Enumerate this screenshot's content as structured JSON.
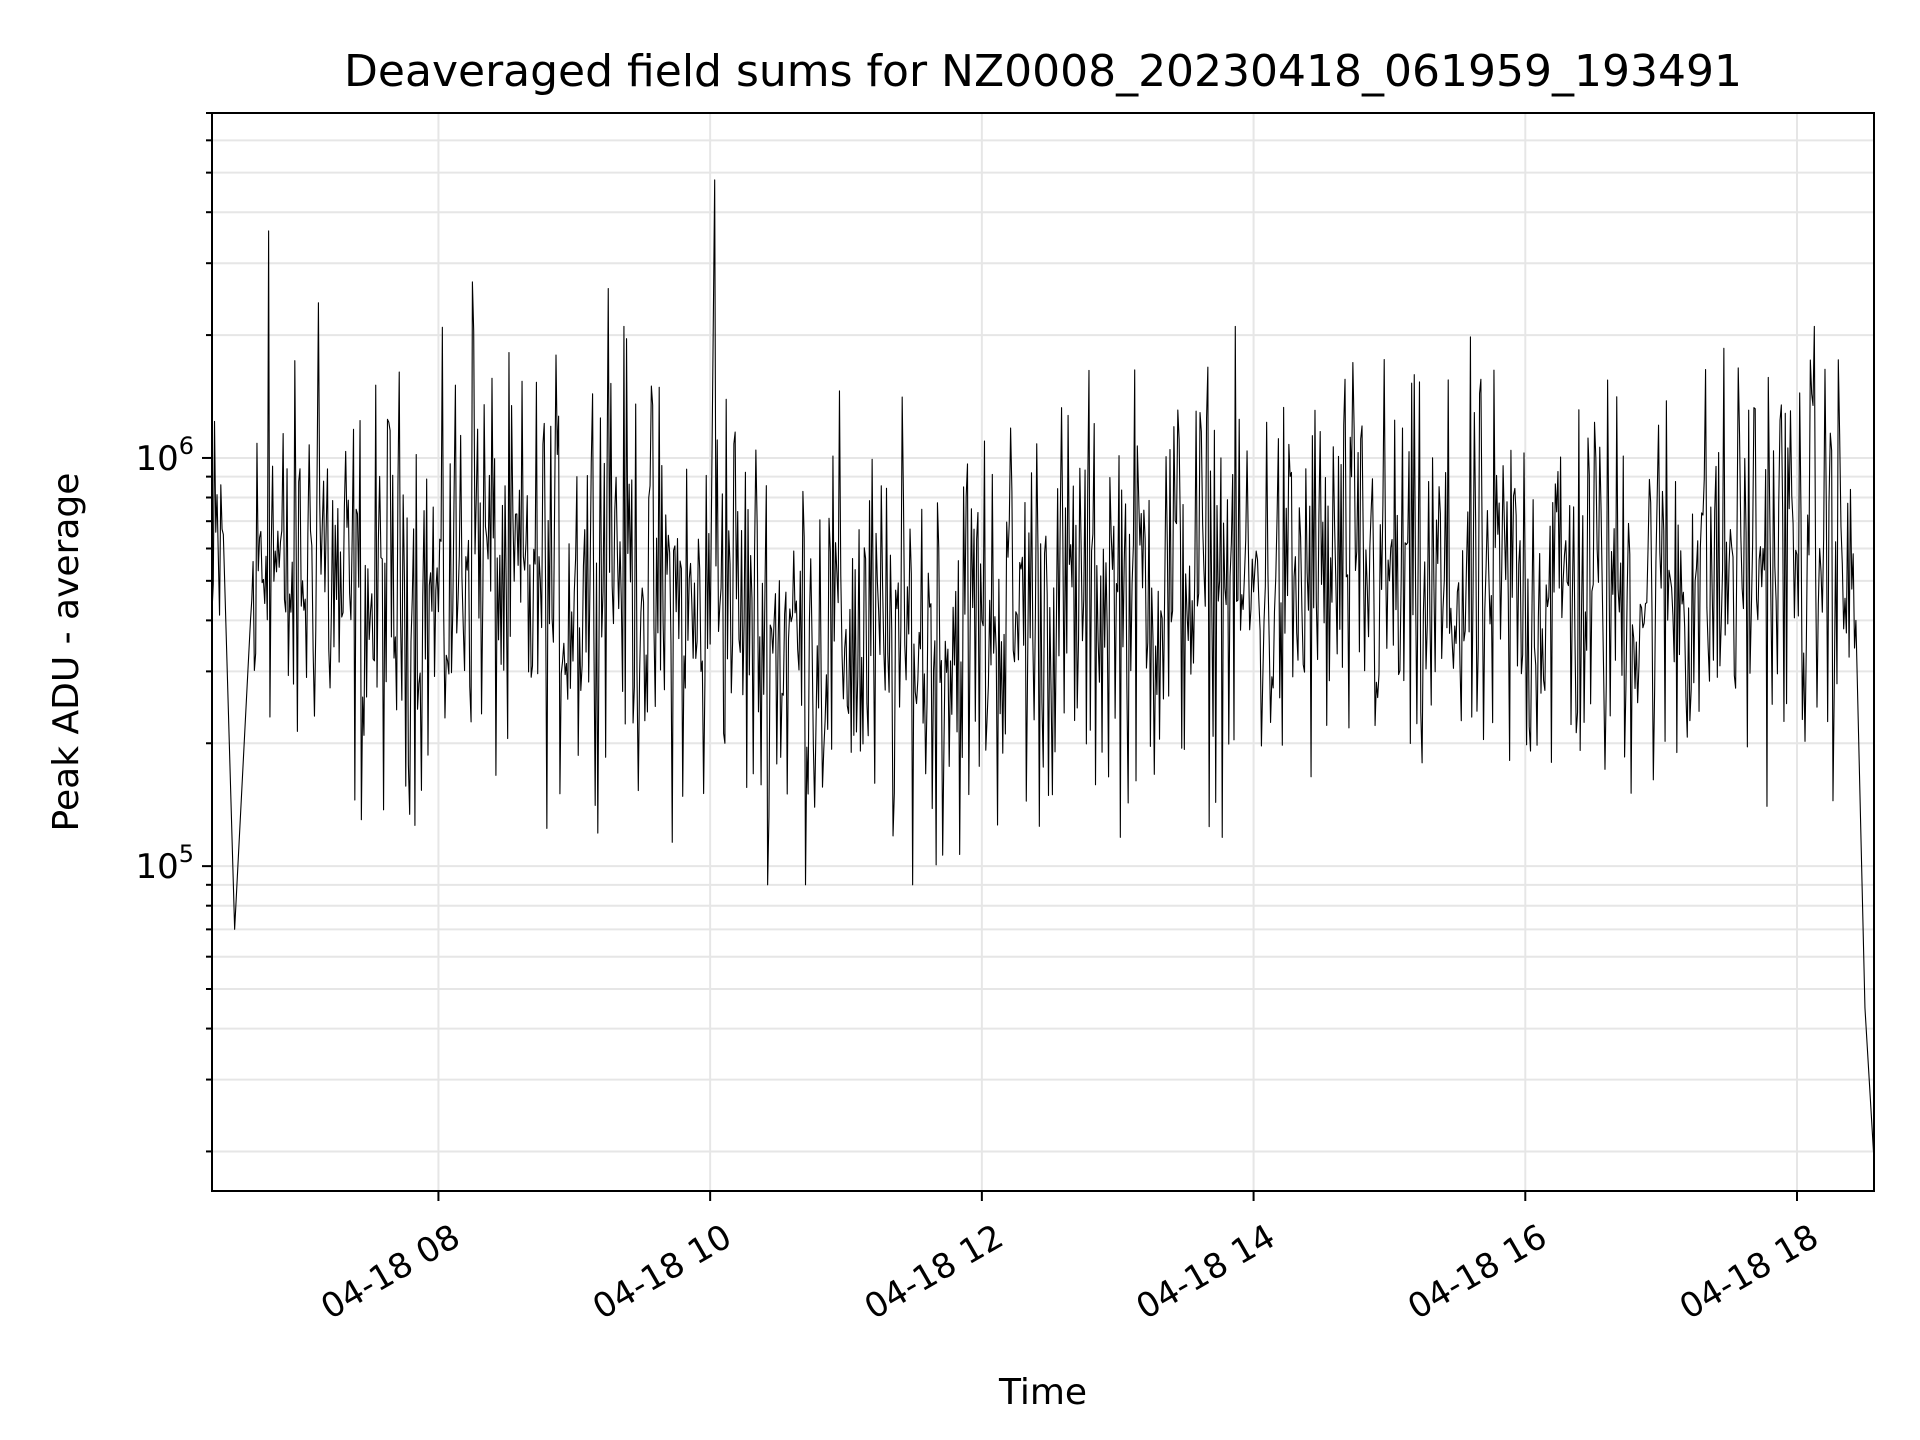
{
  "chart_data": {
    "type": "line",
    "title": "Deaveraged field sums for NZ0008_20230418_061959_193491",
    "xlabel": "Time",
    "ylabel": "Peak ADU - average",
    "y_scale": "log",
    "ylim": [
      16000,
      7000000
    ],
    "xlim": [
      "2023-04-18 06:20",
      "2023-04-18 18:34"
    ],
    "x_ticks": [
      "04-18 08",
      "04-18 10",
      "04-18 12",
      "04-18 14",
      "04-18 16",
      "04-18 18"
    ],
    "x_tick_values": [
      "2023-04-18 08:00",
      "2023-04-18 10:00",
      "2023-04-18 12:00",
      "2023-04-18 14:00",
      "2023-04-18 16:00",
      "2023-04-18 18:00"
    ],
    "y_ticks": [
      {
        "base": "10",
        "exp": "5",
        "value": 100000
      },
      {
        "base": "10",
        "exp": "6",
        "value": 1000000
      }
    ],
    "grid": true,
    "line_color": "#000000",
    "series": [
      {
        "x": [
          "2023-04-18 06:20",
          "2023-04-18 06:25",
          "2023-04-18 06:30",
          "2023-04-18 06:37",
          "2023-04-18 06:45",
          "2023-04-18 06:52",
          "2023-04-18 07:00",
          "2023-04-18 07:07",
          "2023-04-18 07:15",
          "2023-04-18 07:30",
          "2023-04-18 07:45",
          "2023-04-18 08:00",
          "2023-04-18 08:15",
          "2023-04-18 08:30",
          "2023-04-18 08:45",
          "2023-04-18 09:00",
          "2023-04-18 09:15",
          "2023-04-18 09:30",
          "2023-04-18 09:45",
          "2023-04-18 10:00",
          "2023-04-18 10:02",
          "2023-04-18 10:15",
          "2023-04-18 10:30",
          "2023-04-18 10:45",
          "2023-04-18 11:00",
          "2023-04-18 11:15",
          "2023-04-18 11:30",
          "2023-04-18 11:45",
          "2023-04-18 12:00",
          "2023-04-18 12:15",
          "2023-04-18 12:30",
          "2023-04-18 12:45",
          "2023-04-18 13:00",
          "2023-04-18 13:15",
          "2023-04-18 13:30",
          "2023-04-18 13:45",
          "2023-04-18 14:00",
          "2023-04-18 14:15",
          "2023-04-18 14:30",
          "2023-04-18 14:45",
          "2023-04-18 15:00",
          "2023-04-18 15:15",
          "2023-04-18 15:30",
          "2023-04-18 15:45",
          "2023-04-18 16:00",
          "2023-04-18 16:15",
          "2023-04-18 16:30",
          "2023-04-18 16:45",
          "2023-04-18 17:00",
          "2023-04-18 17:15",
          "2023-04-18 17:30",
          "2023-04-18 17:45",
          "2023-04-18 18:00",
          "2023-04-18 18:10",
          "2023-04-18 18:20",
          "2023-04-18 18:26",
          "2023-04-18 18:30",
          "2023-04-18 18:34"
        ],
        "y": [
          420000,
          650000,
          70000,
          400000,
          3600000,
          450000,
          500000,
          2400000,
          450000,
          420000,
          500000,
          420000,
          2700000,
          450000,
          500000,
          470000,
          2600000,
          480000,
          420000,
          350000,
          4800000,
          400000,
          350000,
          360000,
          380000,
          330000,
          350000,
          340000,
          400000,
          420000,
          430000,
          450000,
          470000,
          480000,
          520000,
          500000,
          470000,
          460000,
          490000,
          530000,
          500000,
          420000,
          470000,
          460000,
          470000,
          480000,
          490000,
          470000,
          480000,
          500000,
          550000,
          600000,
          580000,
          600000,
          550000,
          400000,
          45000,
          19000
        ]
      }
    ]
  }
}
